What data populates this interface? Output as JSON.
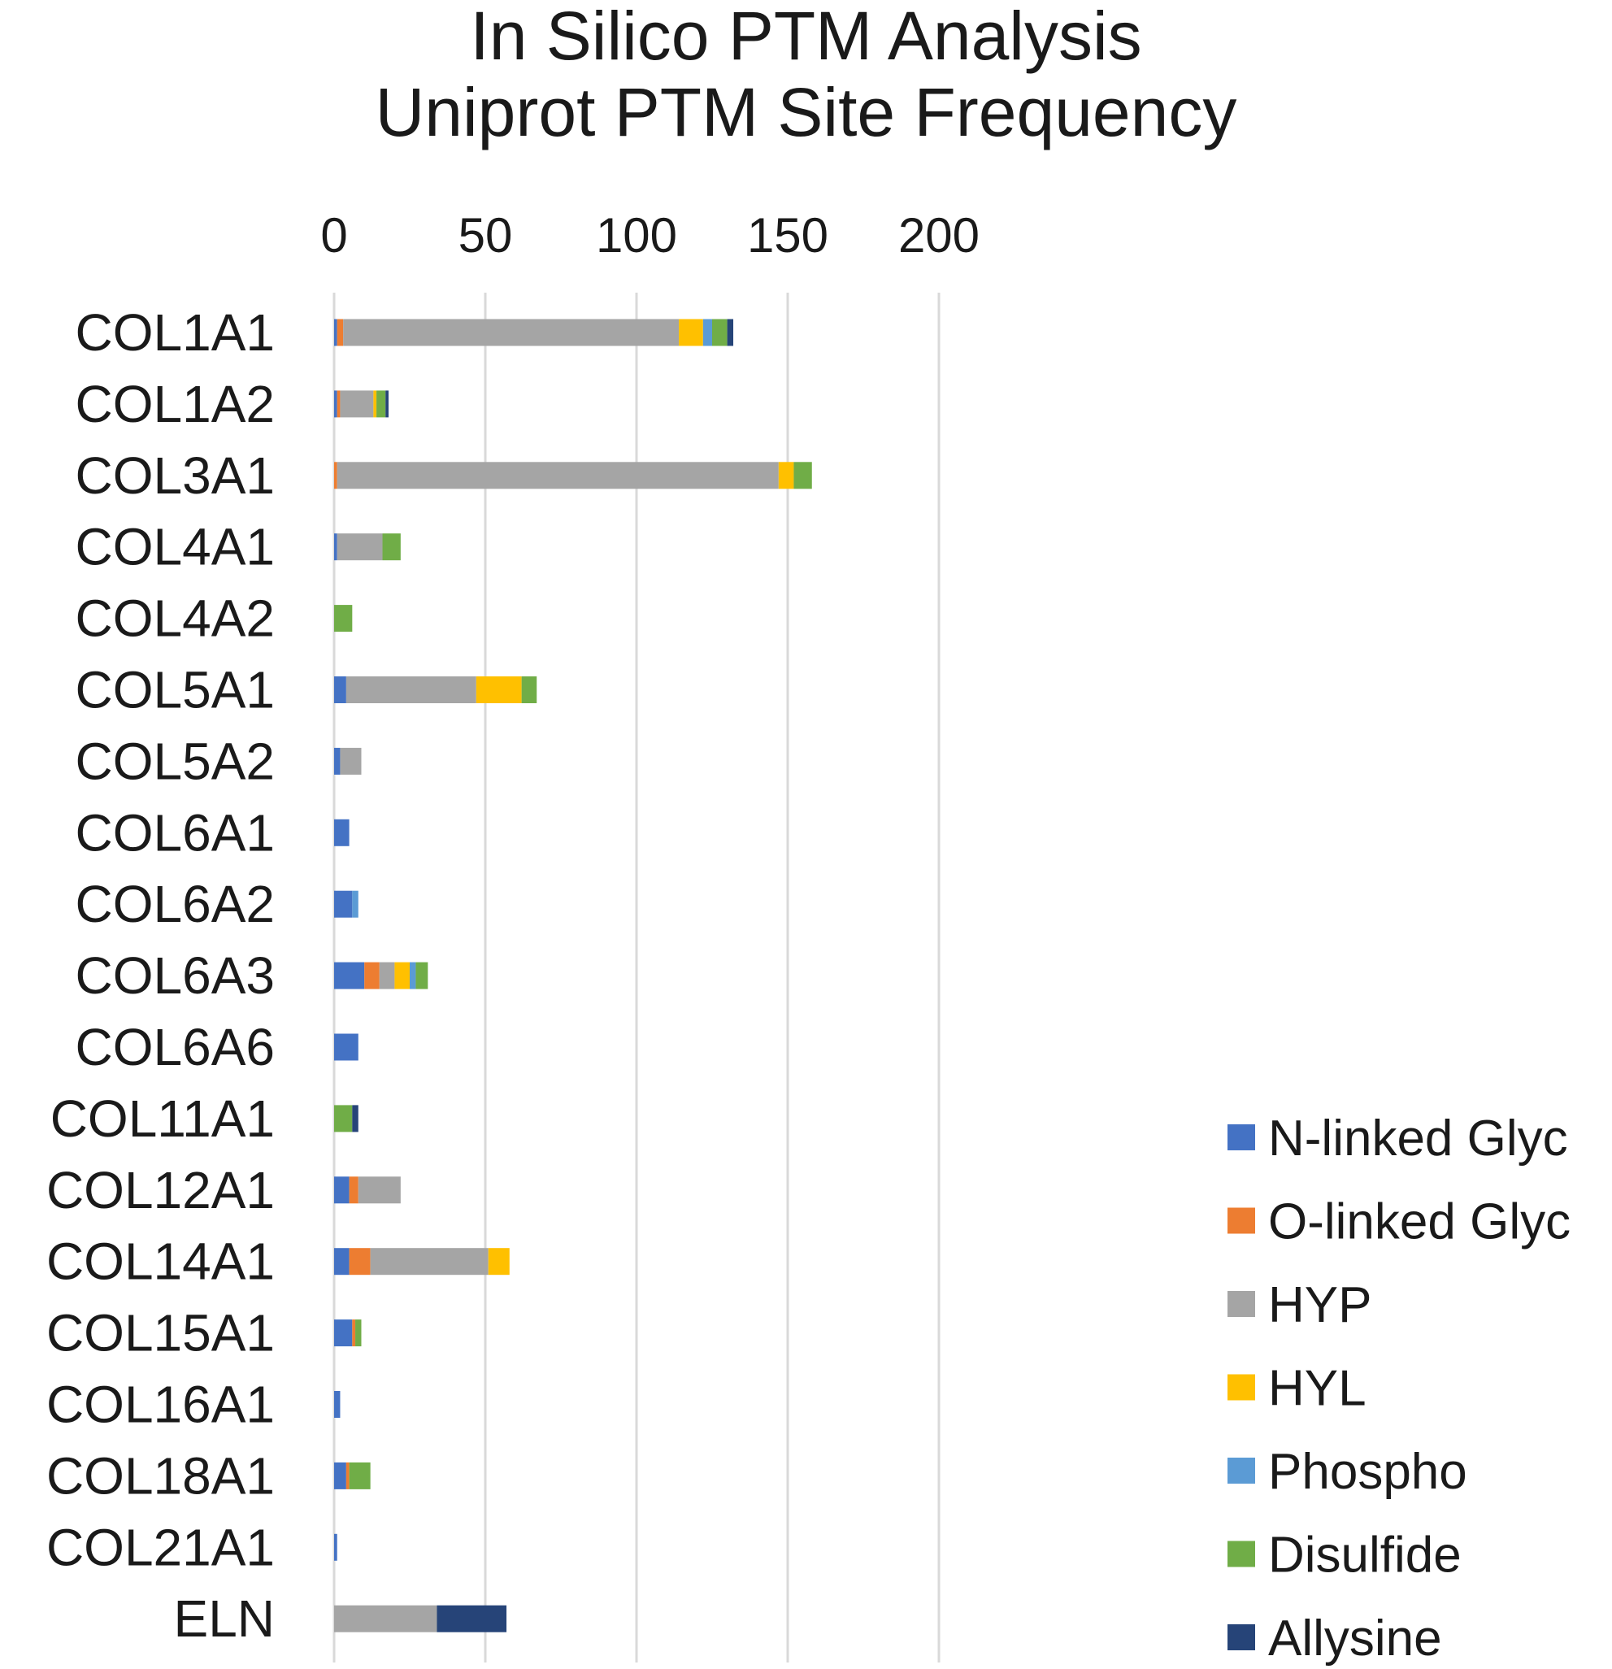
{
  "chart_data": {
    "type": "bar",
    "orientation": "horizontal",
    "stacked": true,
    "title": "In Silico PTM Analysis",
    "subtitle": "Uniprot PTM Site Frequency",
    "xlabel": "",
    "ylabel": "",
    "xlim": [
      0,
      200
    ],
    "x_ticks": [
      0,
      50,
      100,
      150,
      200
    ],
    "x_axis_position": "top",
    "grid": true,
    "legend_position": "bottom-right",
    "categories": [
      "COL1A1",
      "COL1A2",
      "COL3A1",
      "COL4A1",
      "COL4A2",
      "COL5A1",
      "COL5A2",
      "COL6A1",
      "COL6A2",
      "COL6A3",
      "COL6A6",
      "COL11A1",
      "COL12A1",
      "COL14A1",
      "COL15A1",
      "COL16A1",
      "COL18A1",
      "COL21A1",
      "ELN"
    ],
    "series": [
      {
        "name": "N-linked Glyc",
        "color": "#4472c4",
        "values": [
          1,
          1,
          0,
          1,
          0,
          4,
          2,
          5,
          6,
          10,
          8,
          0,
          5,
          5,
          6,
          2,
          4,
          1,
          0
        ]
      },
      {
        "name": "O-linked Glyc",
        "color": "#ed7d31",
        "values": [
          2,
          1,
          1,
          0,
          0,
          0,
          0,
          0,
          0,
          5,
          0,
          0,
          3,
          7,
          1,
          0,
          1,
          0,
          0
        ]
      },
      {
        "name": "HYP",
        "color": "#a5a5a5",
        "values": [
          111,
          11,
          146,
          15,
          0,
          43,
          7,
          0,
          0,
          5,
          0,
          0,
          14,
          39,
          0,
          0,
          0,
          0,
          34
        ]
      },
      {
        "name": "HYL",
        "color": "#ffc000",
        "values": [
          8,
          1,
          5,
          0,
          0,
          15,
          0,
          0,
          0,
          5,
          0,
          0,
          0,
          7,
          0,
          0,
          0,
          0,
          0
        ]
      },
      {
        "name": "Phospho",
        "color": "#5b9bd5",
        "values": [
          3,
          0,
          0,
          0,
          0,
          0,
          0,
          0,
          2,
          2,
          0,
          0,
          0,
          0,
          0,
          0,
          0,
          0,
          0
        ]
      },
      {
        "name": "Disulfide",
        "color": "#70ad47",
        "values": [
          5,
          3,
          6,
          6,
          6,
          5,
          0,
          0,
          0,
          4,
          0,
          6,
          0,
          0,
          2,
          0,
          7,
          0,
          0
        ]
      },
      {
        "name": "Allysine",
        "color": "#264478",
        "values": [
          2,
          1,
          0,
          0,
          0,
          0,
          0,
          0,
          0,
          0,
          0,
          2,
          0,
          0,
          0,
          0,
          0,
          0,
          23
        ]
      }
    ]
  }
}
